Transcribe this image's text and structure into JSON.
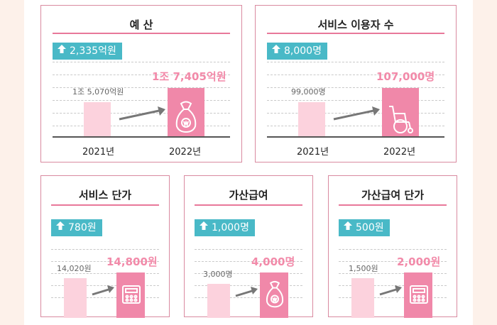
{
  "chart_data": [
    {
      "type": "bar",
      "title": "예 산",
      "increase": "2,335억원",
      "categories": [
        "2021년",
        "2022년"
      ],
      "value_labels": [
        "1조 5,070억원",
        "1조 7,405억원"
      ],
      "values": [
        15070,
        17405
      ],
      "unit": "억원",
      "icon": "money-bag-icon"
    },
    {
      "type": "bar",
      "title": "서비스 이용자 수",
      "increase": "8,000명",
      "categories": [
        "2021년",
        "2022년"
      ],
      "value_labels": [
        "99,000명",
        "107,000명"
      ],
      "values": [
        99000,
        107000
      ],
      "unit": "명",
      "icon": "wheelchair-icon"
    },
    {
      "type": "bar",
      "title": "서비스 단가",
      "increase": "780원",
      "categories": [
        "",
        ""
      ],
      "value_labels": [
        "14,020원",
        "14,800원"
      ],
      "values": [
        14020,
        14800
      ],
      "unit": "원",
      "icon": "calculator-icon"
    },
    {
      "type": "bar",
      "title": "가산급여",
      "increase": "1,000명",
      "categories": [
        "",
        ""
      ],
      "value_labels": [
        "3,000명",
        "4,000명"
      ],
      "values": [
        3000,
        4000
      ],
      "unit": "명",
      "icon": "money-bag-icon"
    },
    {
      "type": "bar",
      "title": "가산급여 단가",
      "increase": "500원",
      "categories": [
        "",
        ""
      ],
      "value_labels": [
        "1,500원",
        "2,000원"
      ],
      "values": [
        1500,
        2000
      ],
      "unit": "원",
      "icon": "calculator-icon"
    }
  ],
  "colors": {
    "bar_old": "#fcd2dd",
    "bar_new": "#f088a9",
    "badge": "#49b9c7",
    "accent": "#e8789a"
  }
}
